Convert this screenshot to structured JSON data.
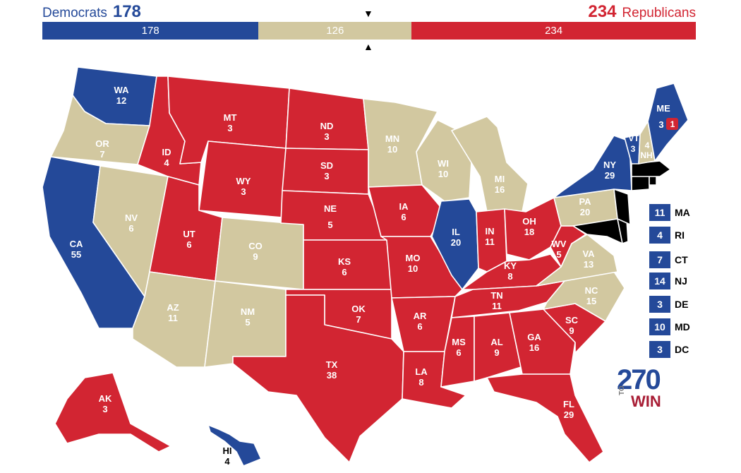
{
  "header": {
    "dem_label": "Democrats",
    "dem_total": "178",
    "rep_label": "Republicans",
    "rep_total": "234"
  },
  "bar": {
    "dem": 178,
    "tossup": 126,
    "rep": 234,
    "dem_text": "178",
    "tossup_text": "126",
    "rep_text": "234",
    "marker_top": "▼",
    "marker_bottom": "▲"
  },
  "colors": {
    "dem": "#244999",
    "rep": "#d22532",
    "tossup": "#d2c8a0"
  },
  "states": [
    {
      "id": "WA",
      "ev": "12",
      "party": "dem"
    },
    {
      "id": "OR",
      "ev": "7",
      "party": "tossup"
    },
    {
      "id": "CA",
      "ev": "55",
      "party": "dem"
    },
    {
      "id": "NV",
      "ev": "6",
      "party": "tossup"
    },
    {
      "id": "ID",
      "ev": "4",
      "party": "rep"
    },
    {
      "id": "MT",
      "ev": "3",
      "party": "rep"
    },
    {
      "id": "WY",
      "ev": "3",
      "party": "rep"
    },
    {
      "id": "UT",
      "ev": "6",
      "party": "rep"
    },
    {
      "id": "AZ",
      "ev": "11",
      "party": "tossup"
    },
    {
      "id": "CO",
      "ev": "9",
      "party": "tossup"
    },
    {
      "id": "NM",
      "ev": "5",
      "party": "tossup"
    },
    {
      "id": "ND",
      "ev": "3",
      "party": "rep"
    },
    {
      "id": "SD",
      "ev": "3",
      "party": "rep"
    },
    {
      "id": "NE",
      "ev": "5",
      "party": "rep"
    },
    {
      "id": "KS",
      "ev": "6",
      "party": "rep"
    },
    {
      "id": "OK",
      "ev": "7",
      "party": "rep"
    },
    {
      "id": "TX",
      "ev": "38",
      "party": "rep"
    },
    {
      "id": "MN",
      "ev": "10",
      "party": "tossup"
    },
    {
      "id": "IA",
      "ev": "6",
      "party": "rep"
    },
    {
      "id": "MO",
      "ev": "10",
      "party": "rep"
    },
    {
      "id": "AR",
      "ev": "6",
      "party": "rep"
    },
    {
      "id": "LA",
      "ev": "8",
      "party": "rep"
    },
    {
      "id": "WI",
      "ev": "10",
      "party": "tossup"
    },
    {
      "id": "IL",
      "ev": "20",
      "party": "dem"
    },
    {
      "id": "MI",
      "ev": "16",
      "party": "tossup"
    },
    {
      "id": "IN",
      "ev": "11",
      "party": "rep"
    },
    {
      "id": "OH",
      "ev": "18",
      "party": "rep"
    },
    {
      "id": "KY",
      "ev": "8",
      "party": "rep"
    },
    {
      "id": "TN",
      "ev": "11",
      "party": "rep"
    },
    {
      "id": "MS",
      "ev": "6",
      "party": "rep"
    },
    {
      "id": "AL",
      "ev": "9",
      "party": "rep"
    },
    {
      "id": "GA",
      "ev": "16",
      "party": "rep"
    },
    {
      "id": "FL",
      "ev": "29",
      "party": "rep"
    },
    {
      "id": "SC",
      "ev": "9",
      "party": "rep"
    },
    {
      "id": "NC",
      "ev": "15",
      "party": "tossup"
    },
    {
      "id": "VA",
      "ev": "13",
      "party": "tossup"
    },
    {
      "id": "WV",
      "ev": "5",
      "party": "rep"
    },
    {
      "id": "PA",
      "ev": "20",
      "party": "tossup"
    },
    {
      "id": "NY",
      "ev": "29",
      "party": "dem"
    },
    {
      "id": "VT",
      "ev": "3",
      "party": "dem"
    },
    {
      "id": "NH",
      "ev": "4",
      "party": "tossup"
    },
    {
      "id": "ME",
      "ev": "3",
      "party": "dem"
    },
    {
      "id": "ME-CD2",
      "ev": "1",
      "party": "rep"
    },
    {
      "id": "AK",
      "ev": "3",
      "party": "rep"
    },
    {
      "id": "HI",
      "ev": "4",
      "party": "dem"
    }
  ],
  "small_states": [
    {
      "abbr": "MA",
      "ev": "11",
      "party": "dem"
    },
    {
      "abbr": "RI",
      "ev": "4",
      "party": "dem"
    },
    {
      "abbr": "CT",
      "ev": "7",
      "party": "dem"
    },
    {
      "abbr": "NJ",
      "ev": "14",
      "party": "dem"
    },
    {
      "abbr": "DE",
      "ev": "3",
      "party": "dem"
    },
    {
      "abbr": "MD",
      "ev": "10",
      "party": "dem"
    },
    {
      "abbr": "DC",
      "ev": "3",
      "party": "dem"
    }
  ],
  "logo": {
    "number": "270",
    "to": "TO",
    "win": "WIN"
  }
}
